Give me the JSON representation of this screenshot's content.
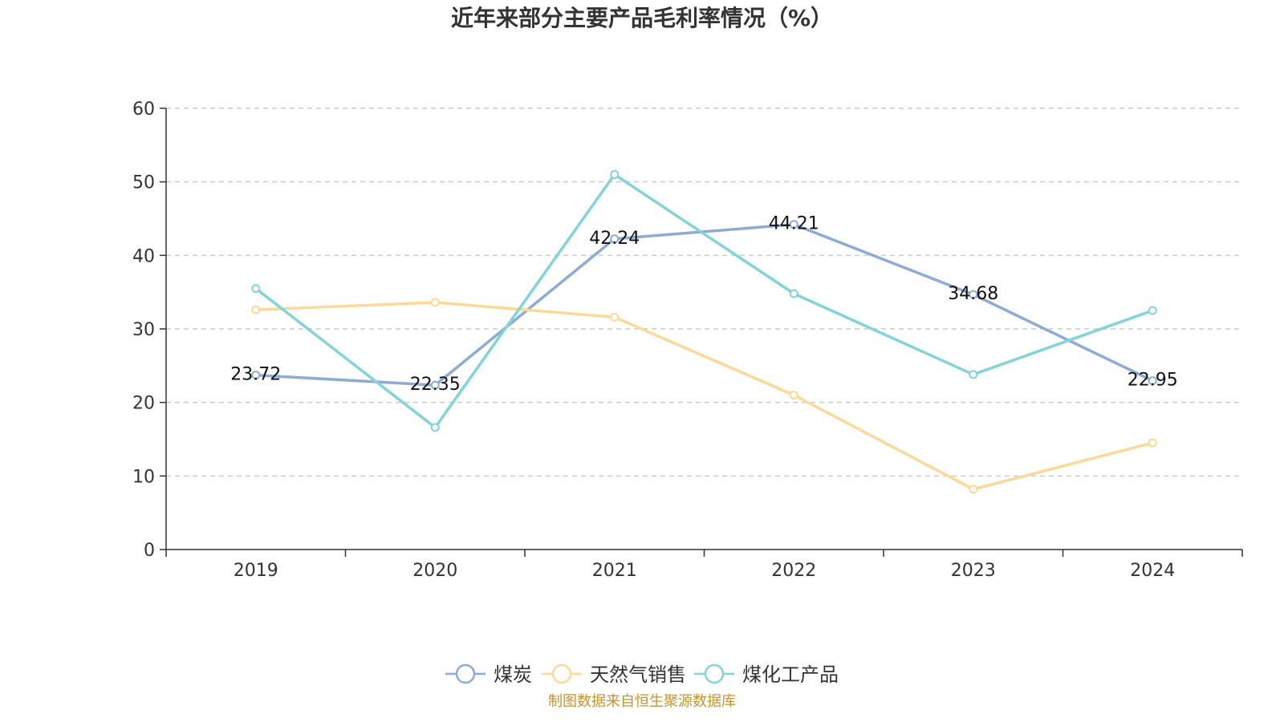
{
  "chart_data": {
    "type": "line",
    "title": "近年来部分主要产品毛利率情况（%）",
    "categories": [
      "2019",
      "2020",
      "2021",
      "2022",
      "2023",
      "2024"
    ],
    "ylim": [
      0,
      60
    ],
    "yticks": [
      0,
      10,
      20,
      30,
      40,
      50,
      60
    ],
    "grid": true,
    "legend_position": "bottom",
    "series": [
      {
        "name": "煤炭",
        "color": "#8eabd8",
        "values": [
          23.72,
          22.35,
          42.24,
          44.21,
          34.68,
          22.95
        ],
        "show_labels": true,
        "labels": [
          "23.72",
          "22.35",
          "42.24",
          "44.21",
          "34.68",
          "22.95"
        ]
      },
      {
        "name": "天然气销售",
        "color": "#fcd998",
        "values": [
          32.6,
          33.6,
          31.6,
          21.0,
          8.2,
          14.5
        ],
        "show_labels": false
      },
      {
        "name": "煤化工产品",
        "color": "#84d3d5",
        "values": [
          35.5,
          16.6,
          51.0,
          34.8,
          23.8,
          32.5
        ],
        "show_labels": false
      }
    ]
  },
  "source": "制图数据来自恒生聚源数据库"
}
